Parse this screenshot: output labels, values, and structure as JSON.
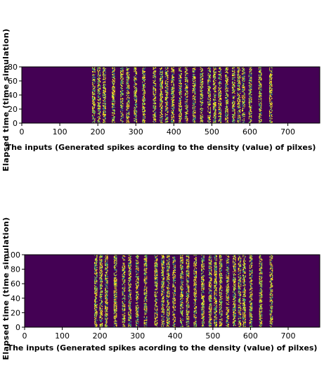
{
  "chart_data": [
    {
      "type": "heatmap",
      "title": "",
      "xlabel": "The inputs (Generated spikes acording to the density (value) of pilxes)",
      "ylabel": "Elapsed time (time simulation)",
      "xlim": [
        0,
        784
      ],
      "ylim": [
        0,
        80
      ],
      "xticks": [
        "0",
        "100",
        "200",
        "300",
        "400",
        "500",
        "600",
        "700"
      ],
      "yticks": [
        "0",
        "20",
        "40",
        "60",
        "80"
      ],
      "background_color": "#440154",
      "spike_colors": [
        "#fde725",
        "#5ec962",
        "#21918c",
        "#3b528b"
      ],
      "active_columns": [
        188,
        202,
        216,
        240,
        262,
        278,
        298,
        320,
        348,
        366,
        380,
        396,
        416,
        432,
        452,
        472,
        492,
        506,
        520,
        538,
        556,
        570,
        582,
        600,
        626,
        654
      ],
      "grid": false
    },
    {
      "type": "heatmap",
      "title": "",
      "xlabel": "The inputs (Generated spikes acording to the density (value) of pilxes)",
      "ylabel": "Elapsed time (time simulation)",
      "xlim": [
        0,
        784
      ],
      "ylim": [
        0,
        100
      ],
      "xticks": [
        "0",
        "100",
        "200",
        "300",
        "400",
        "500",
        "600",
        "700"
      ],
      "yticks": [
        "0",
        "20",
        "40",
        "60",
        "80",
        "100"
      ],
      "background_color": "#440154",
      "spike_colors": [
        "#fde725",
        "#5ec962",
        "#21918c",
        "#3b528b"
      ],
      "active_columns": [
        188,
        202,
        216,
        240,
        262,
        278,
        298,
        320,
        348,
        366,
        380,
        396,
        416,
        432,
        452,
        472,
        492,
        506,
        520,
        538,
        556,
        570,
        582,
        600,
        626,
        654
      ],
      "grid": false
    }
  ]
}
